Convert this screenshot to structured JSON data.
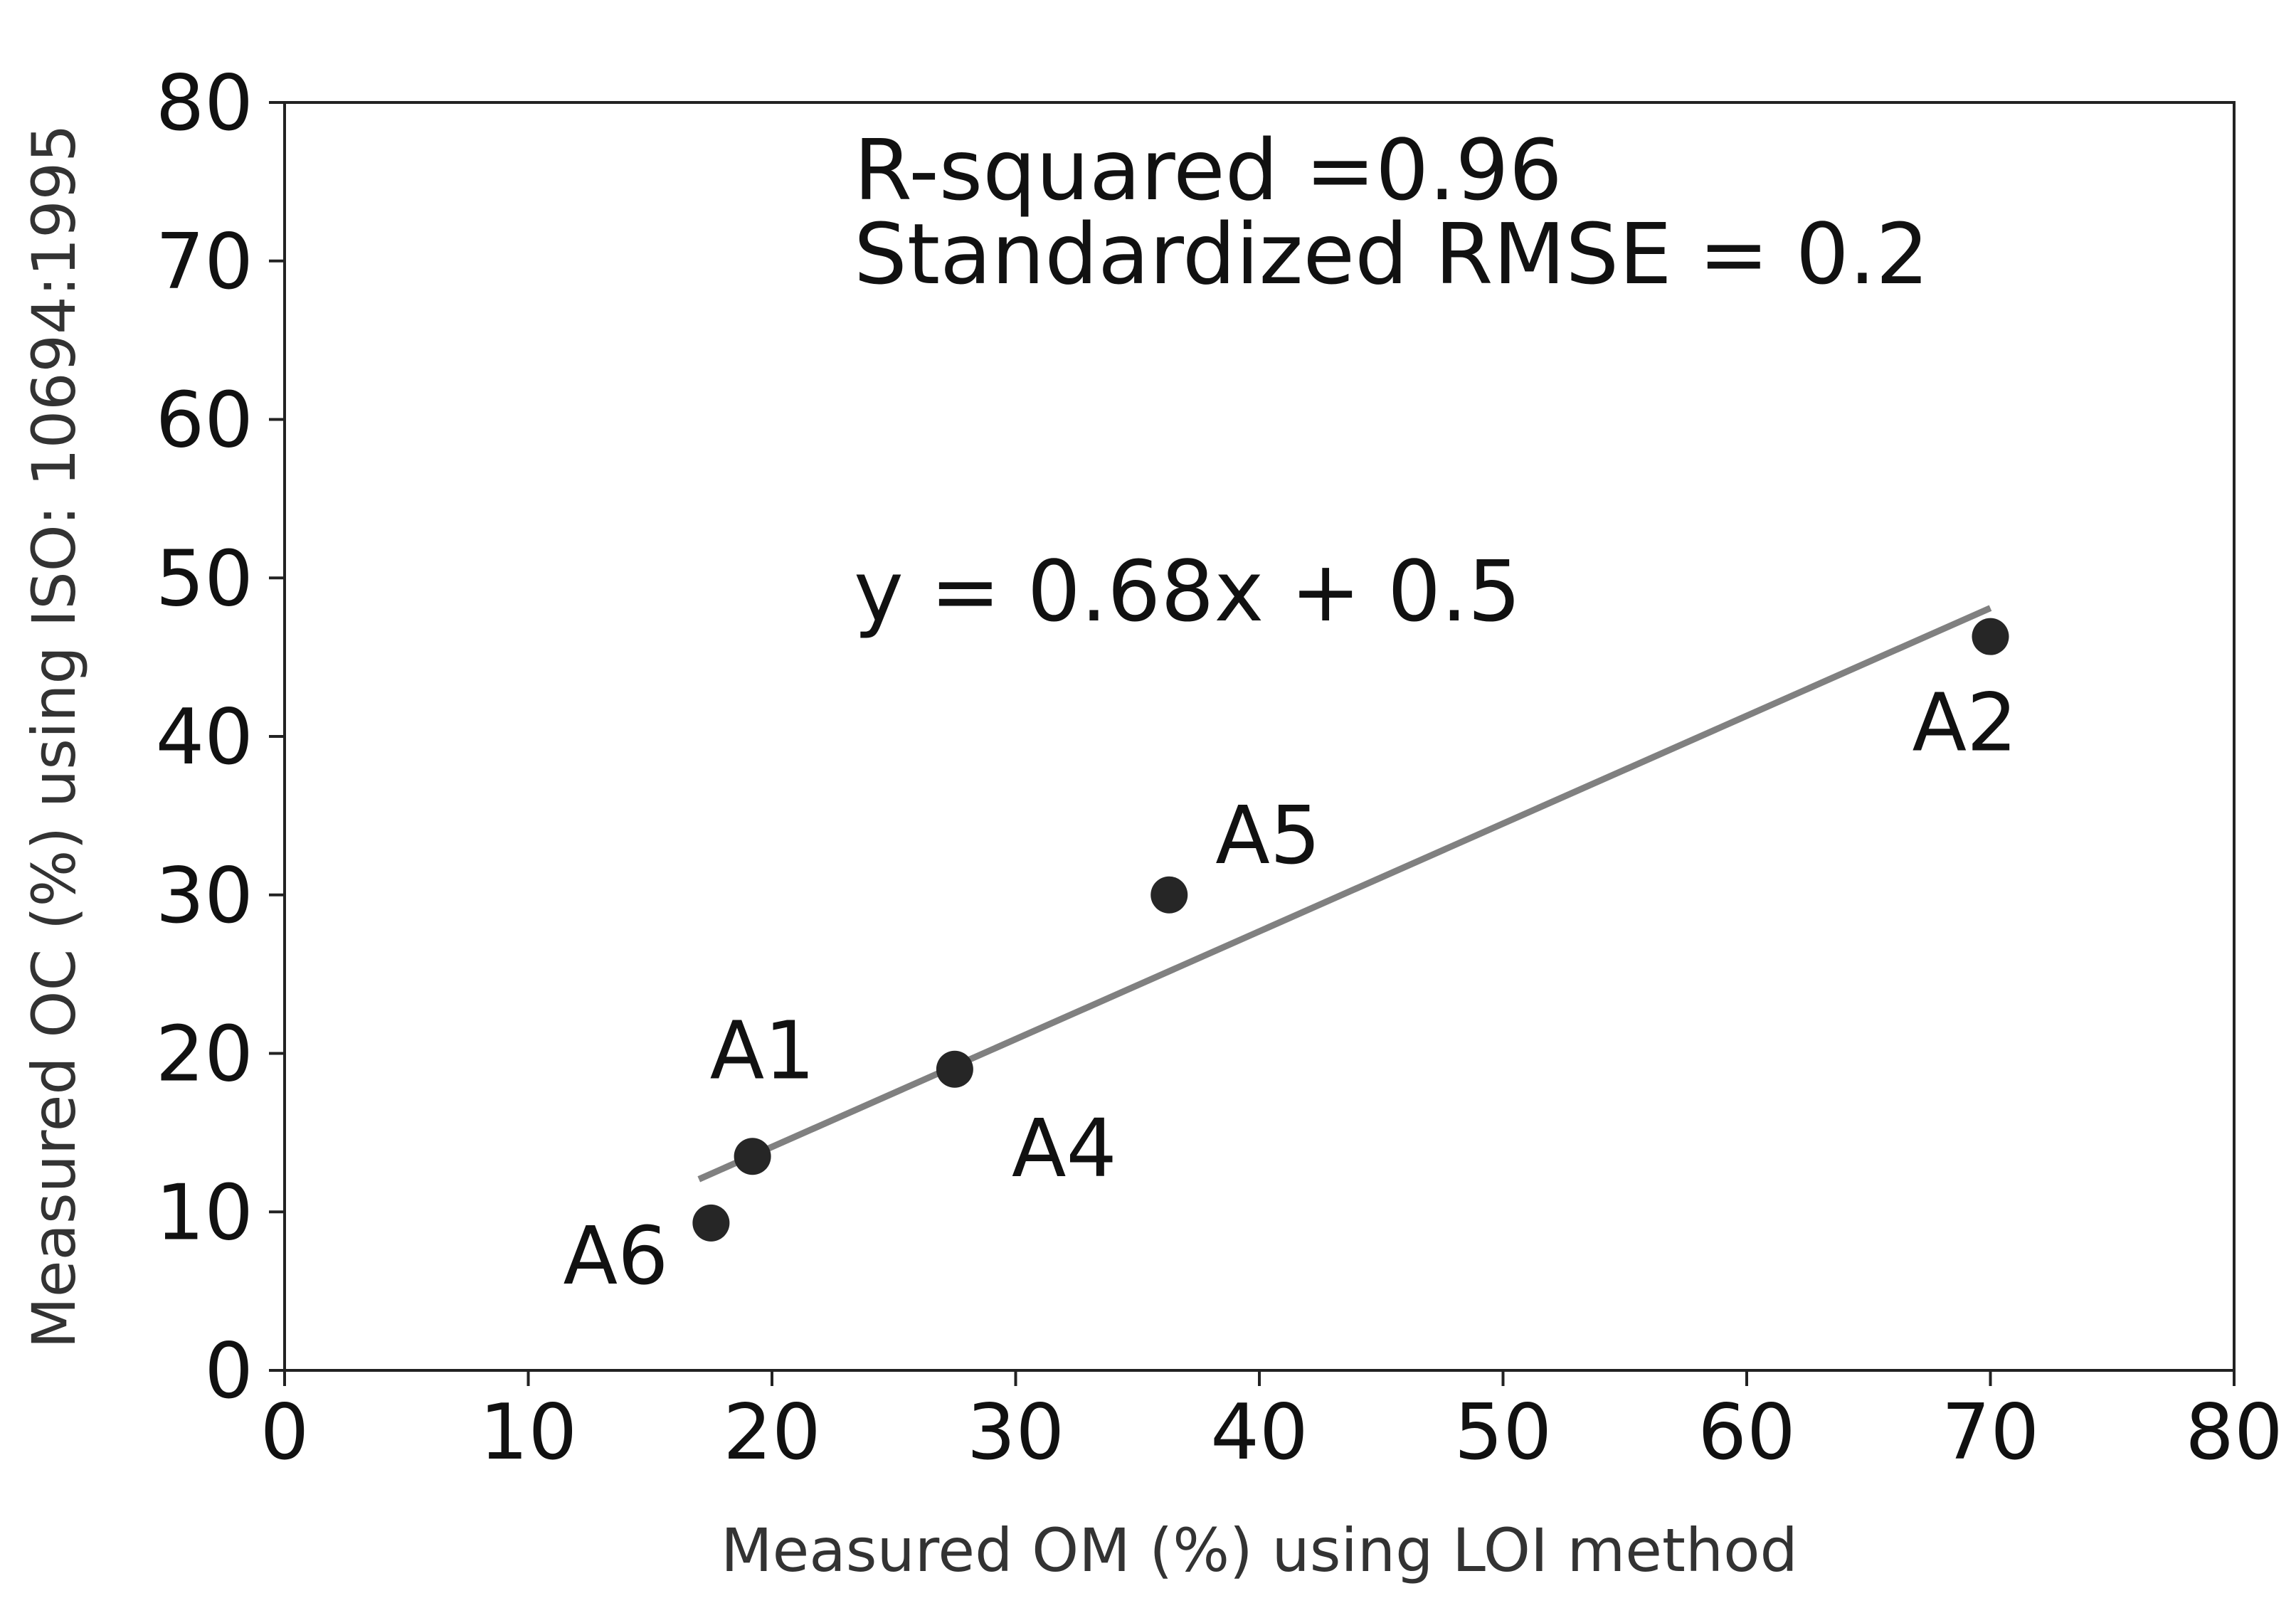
{
  "chart_data": {
    "type": "scatter",
    "title": "",
    "xlabel": "Measured OM (%) using LOI method",
    "ylabel": "Measured OC (%) using ISO: 10694:1995",
    "xlim": [
      0,
      80
    ],
    "ylim": [
      0,
      80
    ],
    "xticks": [
      "0",
      "10",
      "20",
      "30",
      "40",
      "50",
      "60",
      "70",
      "80"
    ],
    "yticks": [
      "0",
      "10",
      "20",
      "30",
      "40",
      "50",
      "60",
      "70",
      "80"
    ],
    "grid": false,
    "points": [
      {
        "label": "A1",
        "x": 19.2,
        "y": 13.5
      },
      {
        "label": "A2",
        "x": 70.0,
        "y": 46.3
      },
      {
        "label": "A4",
        "x": 27.5,
        "y": 19.0
      },
      {
        "label": "A5",
        "x": 36.3,
        "y": 30.0
      },
      {
        "label": "A6",
        "x": 17.5,
        "y": 9.3
      }
    ],
    "fit_line": {
      "slope": 0.68,
      "intercept": 0.5,
      "x_start": 17.0,
      "x_end": 70.0,
      "color": "#808080"
    },
    "point_color": "#262626",
    "annotations": {
      "r_squared": "R-squared =0.96",
      "rmse": "Standardized RMSE = 0.2",
      "equation": "y = 0.68x + 0.5"
    }
  }
}
